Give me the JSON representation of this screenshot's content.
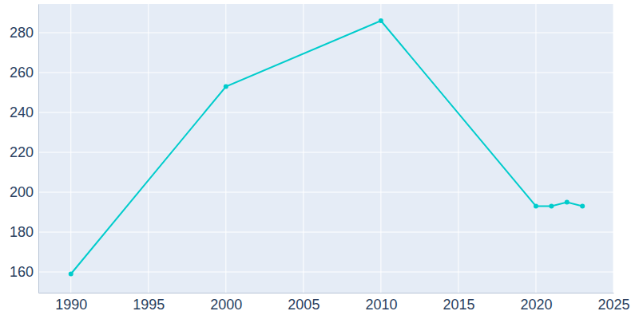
{
  "chart_data": {
    "type": "line",
    "x": [
      1990,
      2000,
      2010,
      2020,
      2021,
      2022,
      2023
    ],
    "values": [
      159,
      253,
      286,
      193,
      193,
      195,
      193
    ],
    "color": "#00cccc",
    "marker": "circle",
    "xlim": [
      1987.9,
      2025
    ],
    "ylim": [
      149.6,
      294.4
    ],
    "xticks": [
      1990,
      1995,
      2000,
      2005,
      2010,
      2015,
      2020,
      2025
    ],
    "yticks": [
      160,
      180,
      200,
      220,
      240,
      260,
      280
    ],
    "grid": true
  }
}
